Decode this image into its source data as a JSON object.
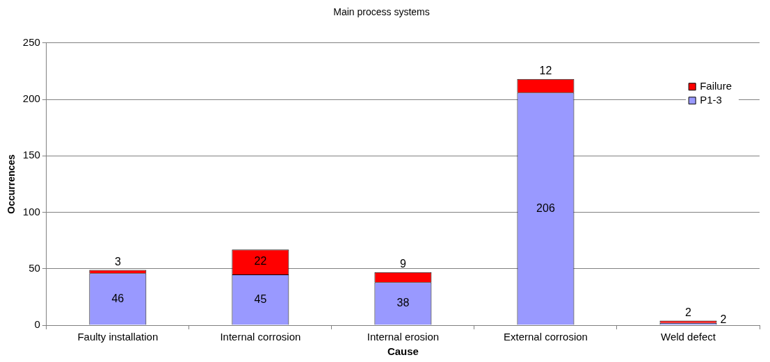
{
  "chart_data": {
    "type": "bar",
    "title": "Main process systems",
    "xlabel": "Cause",
    "ylabel": "Occurrences",
    "categories": [
      "Faulty installation",
      "Internal corrosion",
      "Internal erosion",
      "External corrosion",
      "Weld defect"
    ],
    "series": [
      {
        "name": "P1-3",
        "color": "#9999ff",
        "values": [
          46,
          45,
          38,
          206,
          2
        ]
      },
      {
        "name": "Failure",
        "color": "#ff0000",
        "values": [
          3,
          22,
          9,
          12,
          2
        ]
      }
    ],
    "stacked": true,
    "ylim": [
      0,
      250
    ],
    "yticks": [
      0,
      50,
      100,
      150,
      200,
      250
    ],
    "grid": "y",
    "legend": "top right",
    "data_labels": true
  }
}
